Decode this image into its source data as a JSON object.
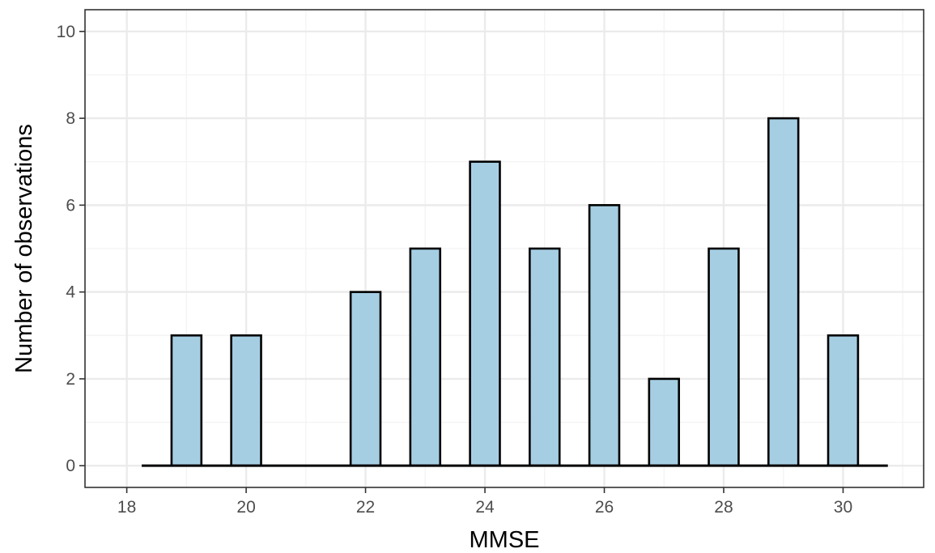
{
  "chart_data": {
    "type": "bar",
    "title": "",
    "xlabel": "MMSE",
    "ylabel": "Number of observations",
    "x": [
      19,
      20,
      21,
      22,
      23,
      24,
      25,
      26,
      27,
      28,
      29,
      30
    ],
    "values": [
      3,
      3,
      0,
      4,
      5,
      7,
      5,
      6,
      2,
      5,
      8,
      3
    ],
    "xlim": [
      17.3,
      31.35
    ],
    "ylim": [
      -0.5,
      10.5
    ],
    "x_ticks": [
      18,
      20,
      22,
      24,
      26,
      28,
      30
    ],
    "y_ticks": [
      0,
      2,
      4,
      6,
      8,
      10
    ],
    "x_tick_labels": [
      "18",
      "20",
      "22",
      "24",
      "26",
      "28",
      "30"
    ],
    "y_tick_labels": [
      "0",
      "2",
      "4",
      "6",
      "8",
      "10"
    ],
    "x_minor_gridlines": [
      19,
      21,
      23,
      25,
      27,
      29,
      31
    ],
    "y_minor_gridlines": [
      1,
      3,
      5,
      7,
      9
    ],
    "baseline_range": [
      18.25,
      30.75
    ],
    "bar_width": 0.5,
    "grid": true,
    "legend": "none",
    "colors": {
      "bar_fill": "#a6cee3",
      "bar_stroke": "#000000",
      "grid_major": "#ebebeb",
      "grid_minor": "#f3f3f3",
      "panel_border": "#333333",
      "tick_text": "#4d4d4d",
      "axis_title": "#000000"
    }
  }
}
